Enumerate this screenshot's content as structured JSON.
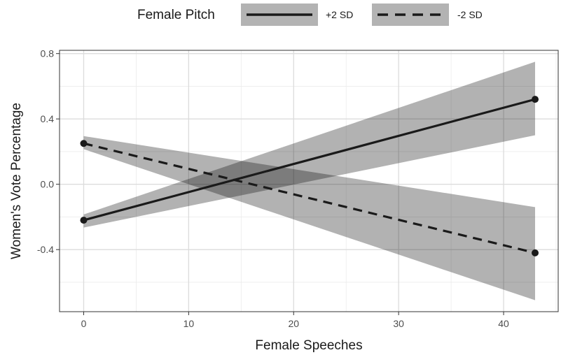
{
  "chart_data": {
    "type": "line",
    "xlabel": "Female Speeches",
    "ylabel": "Women's Vote Percentage",
    "xlim": [
      -2.3,
      45.2
    ],
    "ylim": [
      -0.78,
      0.82
    ],
    "x_ticks": [
      0,
      10,
      20,
      30,
      40
    ],
    "x_tick_labels": [
      "0",
      "10",
      "20",
      "30",
      "40"
    ],
    "y_ticks": [
      -0.4,
      0.0,
      0.4,
      0.8
    ],
    "y_tick_labels": [
      "-0.4",
      "0.0",
      "0.4",
      "0.8"
    ],
    "grid": true,
    "legend_position": "top",
    "legend": {
      "title": "Female Pitch",
      "items": [
        {
          "label": "+2 SD",
          "linestyle": "solid"
        },
        {
          "label": "-2 SD",
          "linestyle": "dashed"
        }
      ]
    },
    "series": [
      {
        "name": "+2 SD",
        "linestyle": "solid",
        "x": [
          0,
          43
        ],
        "y": [
          -0.22,
          0.52
        ],
        "ci_lower": [
          -0.265,
          0.3
        ],
        "ci_upper": [
          -0.185,
          0.75
        ]
      },
      {
        "name": "-2 SD",
        "linestyle": "dashed",
        "x": [
          0,
          43
        ],
        "y": [
          0.25,
          -0.42
        ],
        "ci_lower": [
          0.215,
          -0.71
        ],
        "ci_upper": [
          0.295,
          -0.14
        ]
      }
    ],
    "colors": {
      "line": "#1a1a1a",
      "ribbon": "#b3b3b3",
      "grid": "#ebebeb",
      "panel_border": "#333333",
      "background": "#ffffff"
    }
  }
}
